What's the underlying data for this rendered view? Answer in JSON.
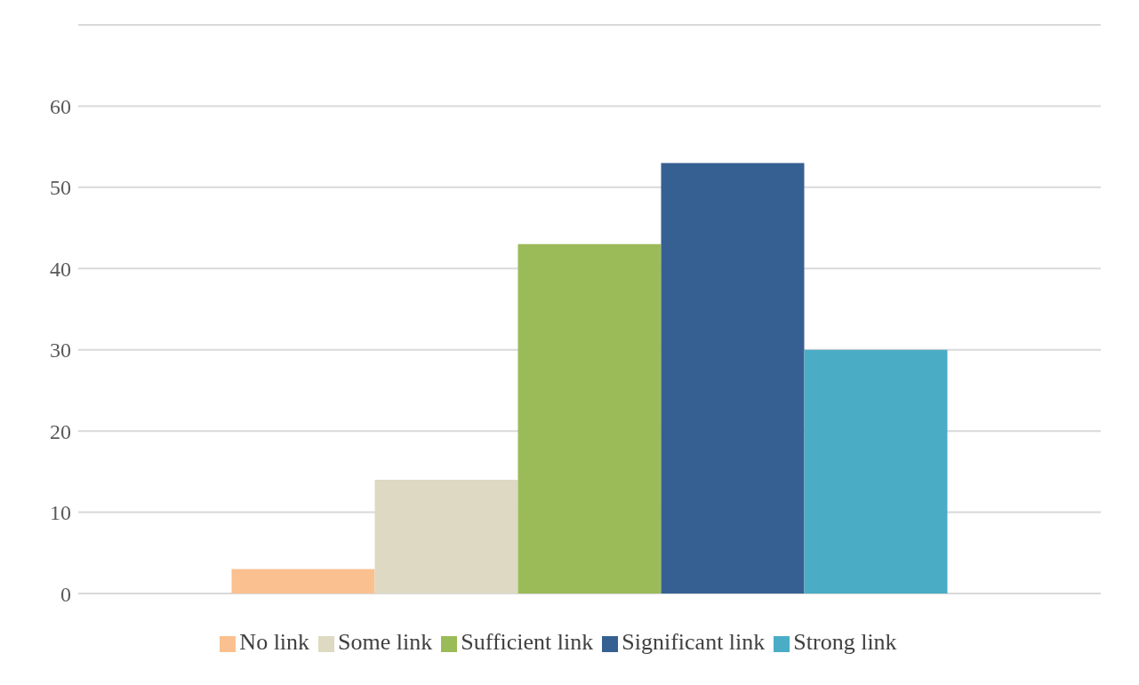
{
  "chart_data": {
    "type": "bar",
    "categories": [
      null
    ],
    "series": [
      {
        "name": "No link",
        "color": "#fac090",
        "values": [
          3
        ]
      },
      {
        "name": "Some link",
        "color": "#ddd9c3",
        "values": [
          14
        ]
      },
      {
        "name": "Sufficient link",
        "color": "#9bbb59",
        "values": [
          43
        ]
      },
      {
        "name": "Significant link",
        "color": "#366092",
        "values": [
          53
        ]
      },
      {
        "name": "Strong link",
        "color": "#4bacc6",
        "values": [
          30
        ]
      }
    ],
    "ylim": [
      0,
      70
    ],
    "yticks": [
      0,
      10,
      20,
      30,
      40,
      50,
      60,
      {
        "value": 70,
        "label": null
      }
    ],
    "grid": "y",
    "legend": "bottom"
  }
}
